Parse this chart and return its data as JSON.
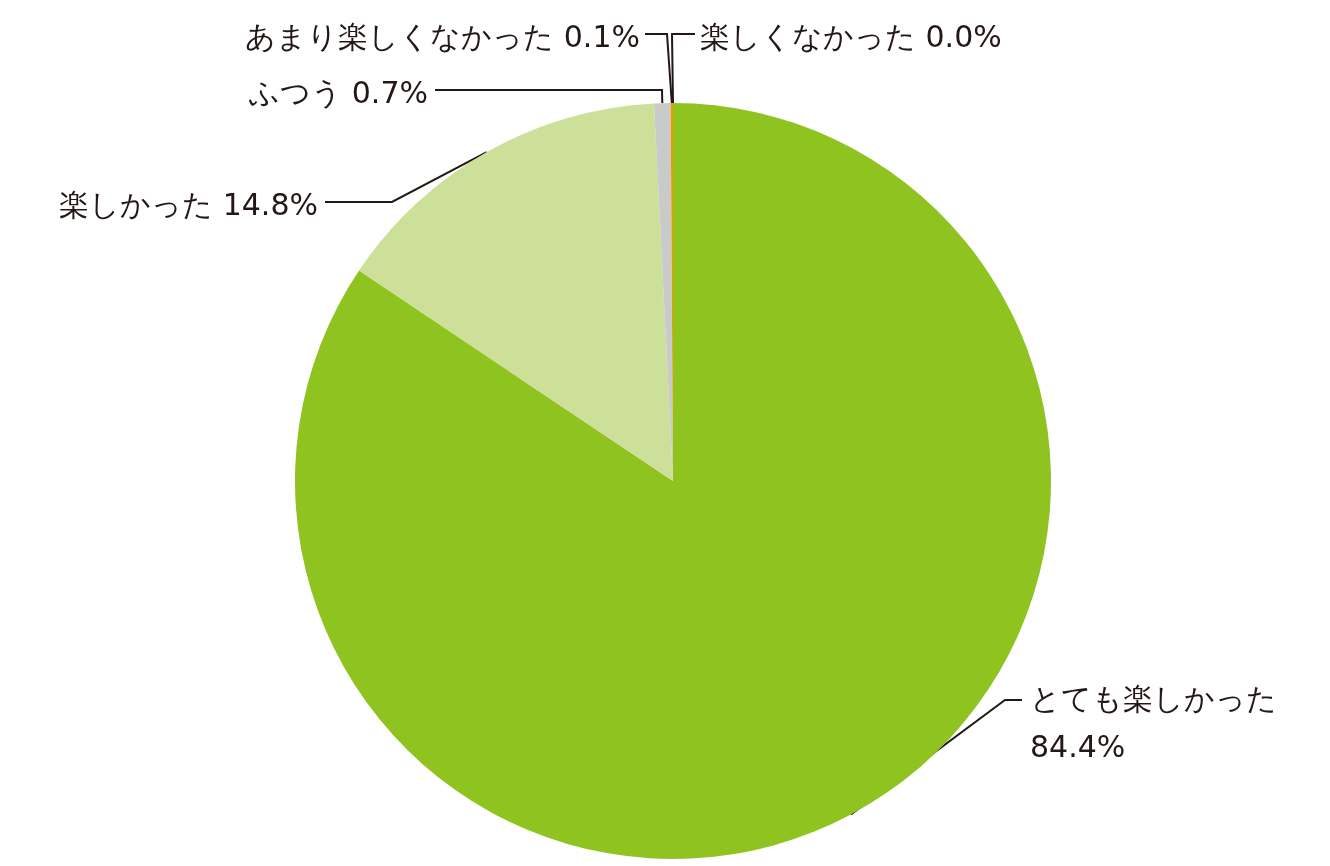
{
  "chart_data": {
    "type": "pie",
    "categories": [
      "とても楽しかった",
      "楽しかった",
      "ふつう",
      "あまり楽しくなかった",
      "楽しくなかった"
    ],
    "values": [
      84.4,
      14.8,
      0.7,
      0.1,
      0.0
    ],
    "value_labels": [
      "84.4%",
      "14.8%",
      "0.7%",
      "0.1%",
      "0.0%"
    ],
    "colors": [
      "#8fc31f",
      "#cde09a",
      "#c9caca",
      "#f39800",
      "#e60012"
    ],
    "legend": false
  }
}
